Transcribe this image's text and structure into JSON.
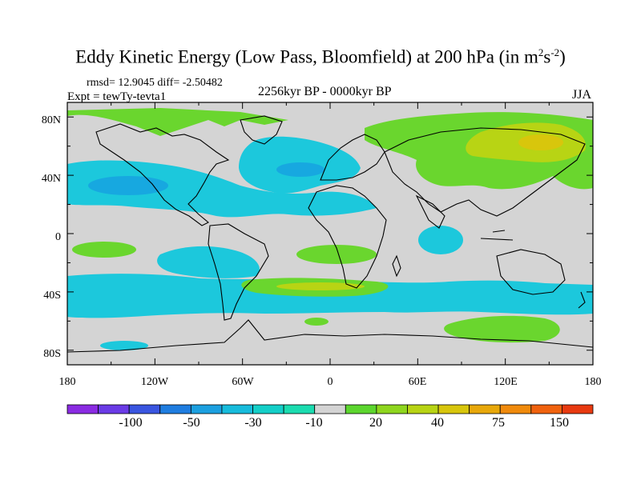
{
  "title": "Eddy Kinetic Energy (Low Pass, Bloomfield) at 200 hPa (in m",
  "title_unit_exp1": "2",
  "title_unit_mid": "s",
  "title_unit_exp2": "-2",
  "title_close": ")",
  "stats_text": "rmsd= 12.9045 diff= -2.50482",
  "expt_text": "Expt = tewTy-tevta1",
  "period_text": "2256kyr BP - 0000kyr BP",
  "season": "JJA",
  "lat_labels": [
    "80N",
    "40N",
    "0",
    "40S",
    "80S"
  ],
  "lon_labels": [
    "180",
    "120W",
    "60W",
    "0",
    "60E",
    "120E",
    "180"
  ],
  "colorbar": {
    "colors": [
      "#8a2be2",
      "#6a3be6",
      "#3a55e0",
      "#1f7de0",
      "#1ca0e0",
      "#17bcdc",
      "#14cfc8",
      "#1bdcb0",
      "#d4d4d4",
      "#5cd62e",
      "#8ed61e",
      "#b8d414",
      "#d8c60c",
      "#e8a80a",
      "#f08a0c",
      "#f0620e",
      "#e83a10"
    ],
    "labels": [
      "-100",
      "-50",
      "-30",
      "-10",
      "20",
      "40",
      "75",
      "150"
    ]
  },
  "map": {
    "background_color": "#d4d4d4",
    "extent": {
      "lon": [
        -180,
        180
      ],
      "lat": [
        -90,
        90
      ]
    },
    "regions": [
      {
        "name": "north-pacific-cyan",
        "color": "#1cc8dc"
      },
      {
        "name": "north-atlantic-cyan",
        "color": "#1cc8dc"
      },
      {
        "name": "eurasia-green",
        "color": "#6ad62e"
      },
      {
        "name": "siberia-yellow",
        "color": "#b8d414"
      },
      {
        "name": "southern-ocean-cyan",
        "color": "#1cc8dc"
      },
      {
        "name": "antarctic-green",
        "color": "#6ad62e"
      },
      {
        "name": "arctic-green",
        "color": "#6ad62e"
      }
    ]
  }
}
